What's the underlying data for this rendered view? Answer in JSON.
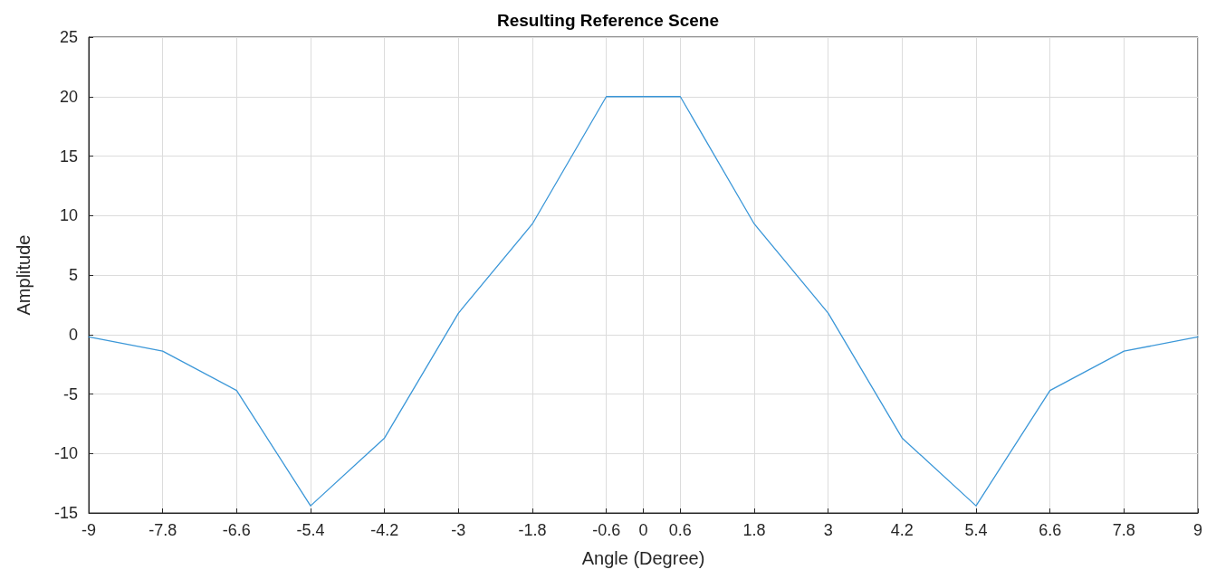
{
  "chart_data": {
    "type": "line",
    "title": "Resulting Reference Scene",
    "xlabel": "Angle (Degree)",
    "ylabel": "Amplitude",
    "x": [
      -9,
      -7.8,
      -6.6,
      -5.4,
      -4.2,
      -3,
      -1.8,
      -0.6,
      0,
      0.6,
      1.8,
      3,
      4.2,
      5.4,
      6.6,
      7.8,
      9
    ],
    "series": [
      {
        "color": "#3b97d8",
        "values": [
          -0.2,
          -1.4,
          -4.7,
          -14.4,
          -8.7,
          1.8,
          9.3,
          20,
          20,
          20,
          9.3,
          1.8,
          -8.7,
          -14.4,
          -4.7,
          -1.4,
          -0.2
        ]
      }
    ],
    "xlim": [
      -9,
      9
    ],
    "xticks": [
      -9,
      -7.8,
      -6.6,
      -5.4,
      -4.2,
      -3,
      -1.8,
      -0.6,
      0,
      0.6,
      1.8,
      3,
      4.2,
      5.4,
      6.6,
      7.8,
      9
    ],
    "ylim": [
      -15,
      25
    ],
    "yticks": [
      -15,
      -10,
      -5,
      0,
      5,
      10,
      15,
      20,
      25
    ],
    "grid": true,
    "marker": "none",
    "line_style": "solid"
  }
}
